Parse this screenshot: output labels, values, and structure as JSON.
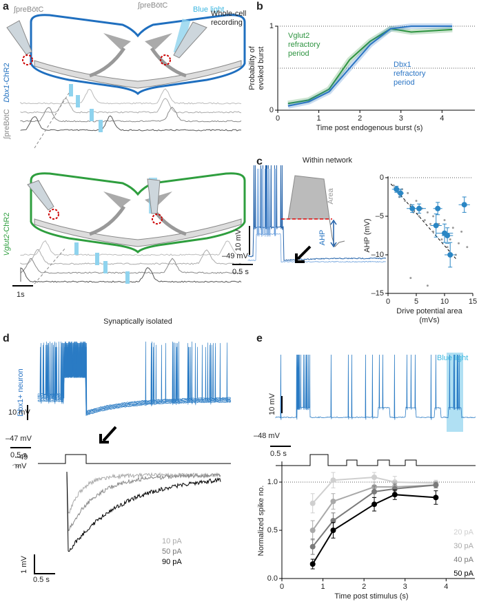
{
  "panel_labels": [
    "a",
    "b",
    "c",
    "d",
    "e"
  ],
  "a": {
    "light": "Blue light",
    "recording": "Whole-cell recording",
    "integral": "∫preBötC",
    "dbx1": "Dbx1",
    "vglut2": "Vglut2",
    "chr2": "-ChR2",
    "trace_label": "∫preBötC",
    "scale_time": "1s"
  },
  "isolated": "Synaptically isolated",
  "c": {
    "title": "Within network",
    "scale_v": "10 mV",
    "scale_t": "0.5 s",
    "vm": "–49 mV",
    "area": "Area",
    "ahp": "AHP"
  },
  "d": {
    "neuron": "Dbx1+ neuron",
    "scale_v": "10 mV",
    "vm": "–47 mV",
    "scale_t": "0.5 s",
    "vm2": "–49 mV",
    "scale_v2": "1 mV",
    "scale_t2": "0.5 s",
    "currents": [
      "10 pA",
      "50 pA",
      "90 pA"
    ]
  },
  "e": {
    "light": "Blue light",
    "scale_v": "10 mV",
    "vm": "–48 mV",
    "scale_t": "0.5 s"
  },
  "chart_data": [
    {
      "type": "line",
      "xlabel": "Time post endogenous burst (s)",
      "ylabel": "Probability of evoked burst",
      "xlim": [
        0,
        4.8
      ],
      "ylim": [
        0,
        1
      ],
      "xticks": [
        0,
        1,
        2,
        3,
        4
      ],
      "yticks": [
        0,
        1
      ],
      "reference_lines": [
        0.5,
        1
      ],
      "x": [
        0.25,
        0.75,
        1.25,
        1.75,
        2.25,
        2.75,
        3.25,
        4.25
      ],
      "series": [
        {
          "name": "Vglut2 refractory period",
          "color": "#2e9440",
          "values": [
            0.08,
            0.12,
            0.25,
            0.6,
            0.82,
            0.97,
            0.93,
            0.96
          ]
        },
        {
          "name": "Dbx1 refractory period",
          "color": "#2a74c4",
          "values": [
            0.05,
            0.1,
            0.22,
            0.5,
            0.78,
            0.97,
            1,
            1
          ]
        }
      ]
    },
    {
      "type": "scatter",
      "xlabel": "Drive potential area (mVs)",
      "ylabel": "AHP (mV)",
      "xlim": [
        0,
        15
      ],
      "ylim": [
        -15,
        0
      ],
      "xticks": [
        0,
        5,
        10,
        15
      ],
      "yticks": [
        0,
        {
          "value": -5,
          "label": "–5"
        },
        {
          "value": -10,
          "label": "–10"
        },
        {
          "value": -15,
          "label": "–15"
        }
      ],
      "reference_lines": [
        0
      ],
      "series": [
        {
          "color": "#9a9a9a",
          "x": [
            1,
            2,
            2.5,
            3,
            3.5,
            4,
            4.5,
            5,
            5.5,
            6,
            6.5,
            7,
            7.5,
            8,
            8,
            9,
            9.5,
            10,
            10.5,
            11,
            11.5,
            12,
            12.5,
            13,
            14,
            7,
            4
          ],
          "values": [
            -1,
            -2.5,
            -1.5,
            -3,
            -2,
            -3.5,
            -4.5,
            -3,
            -5,
            -4,
            -5.5,
            -4.5,
            -6,
            -5,
            -7,
            -6,
            -8,
            -5.5,
            -9,
            -8,
            -6.5,
            -10,
            -8.5,
            -7,
            -9,
            -14,
            -13
          ]
        },
        {
          "color": "#2a86c4",
          "x": [
            1.5,
            2.2,
            4.3,
            5.5,
            8.5,
            8.8,
            10,
            10.5,
            11,
            13.5
          ],
          "values": [
            -1.5,
            -2,
            -4,
            -4,
            -6.2,
            -4,
            -7.2,
            -7.5,
            -10,
            -3.5
          ],
          "xerr": [
            0.8,
            0.6,
            1,
            1.2,
            1,
            0.8,
            1.5,
            1,
            1,
            1
          ],
          "yerr": [
            0.4,
            0.5,
            0.5,
            0.6,
            1.5,
            0.8,
            1.2,
            1,
            1.6,
            1
          ]
        }
      ]
    },
    {
      "type": "line",
      "xlabel": "Time post stimulus (s)",
      "ylabel": "Normalized spike no.",
      "xlim": [
        0,
        4.7
      ],
      "ylim": [
        0,
        1.2
      ],
      "xticks": [
        0,
        1,
        2,
        3,
        4
      ],
      "yticks": [
        {
          "value": 0,
          "label": "0.0"
        },
        {
          "value": 0.5,
          "label": "0.5"
        },
        {
          "value": 1,
          "label": "1.0"
        }
      ],
      "reference_lines": [
        1
      ],
      "x": [
        0.75,
        1.25,
        2.25,
        2.75,
        3.75
      ],
      "series": [
        {
          "name": "20 pA",
          "color": "#cfcfcf",
          "values": [
            0.78,
            1.02,
            1.05,
            1.0,
            0.99
          ],
          "errors": [
            0.1,
            0.08,
            0.05,
            0.06,
            0.03
          ]
        },
        {
          "name": "30 pA",
          "color": "#a9a9a9",
          "values": [
            0.5,
            0.8,
            0.95,
            0.95,
            0.97
          ],
          "errors": [
            0.1,
            0.08,
            0.05,
            0.05,
            0.03
          ]
        },
        {
          "name": "40 pA",
          "color": "#7a7a7a",
          "values": [
            0.33,
            0.6,
            0.9,
            0.93,
            0.97
          ],
          "errors": [
            0.08,
            0.08,
            0.06,
            0.05,
            0.03
          ]
        },
        {
          "name": "50 pA",
          "color": "#000000",
          "values": [
            0.15,
            0.5,
            0.77,
            0.87,
            0.84
          ],
          "errors": [
            0.05,
            0.08,
            0.07,
            0.05,
            0.07
          ]
        }
      ]
    }
  ]
}
